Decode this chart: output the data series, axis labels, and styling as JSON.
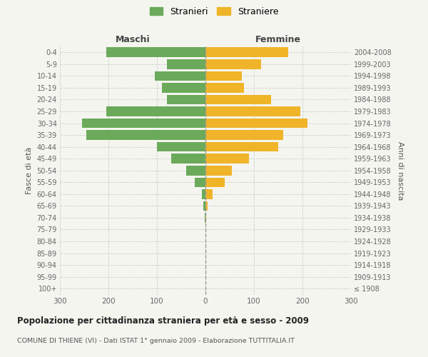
{
  "age_groups": [
    "100+",
    "95-99",
    "90-94",
    "85-89",
    "80-84",
    "75-79",
    "70-74",
    "65-69",
    "60-64",
    "55-59",
    "50-54",
    "45-49",
    "40-44",
    "35-39",
    "30-34",
    "25-29",
    "20-24",
    "15-19",
    "10-14",
    "5-9",
    "0-4"
  ],
  "birth_years": [
    "≤ 1908",
    "1909-1913",
    "1914-1918",
    "1919-1923",
    "1924-1928",
    "1929-1933",
    "1934-1938",
    "1939-1943",
    "1944-1948",
    "1949-1953",
    "1954-1958",
    "1959-1963",
    "1964-1968",
    "1969-1973",
    "1974-1978",
    "1979-1983",
    "1984-1988",
    "1989-1993",
    "1994-1998",
    "1999-2003",
    "2004-2008"
  ],
  "males": [
    0,
    0,
    0,
    0,
    0,
    0,
    2,
    4,
    8,
    22,
    40,
    70,
    100,
    245,
    255,
    205,
    80,
    90,
    105,
    80,
    205
  ],
  "females": [
    0,
    0,
    0,
    0,
    0,
    0,
    2,
    4,
    15,
    40,
    55,
    90,
    150,
    160,
    210,
    195,
    135,
    80,
    75,
    115,
    170
  ],
  "male_color": "#6aaa5a",
  "female_color": "#f0b429",
  "background_color": "#f5f5f0",
  "grid_color": "#cccccc",
  "dashed_line_color": "#999999",
  "xlim": 300,
  "title": "Popolazione per cittadinanza straniera per età e sesso - 2009",
  "subtitle": "COMUNE DI THIENE (VI) - Dati ISTAT 1° gennaio 2009 - Elaborazione TUTTITALIA.IT",
  "ylabel_left": "Fasce di età",
  "ylabel_right": "Anni di nascita",
  "legend_male": "Stranieri",
  "legend_female": "Straniere",
  "maschi_label": "Maschi",
  "femmine_label": "Femmine"
}
